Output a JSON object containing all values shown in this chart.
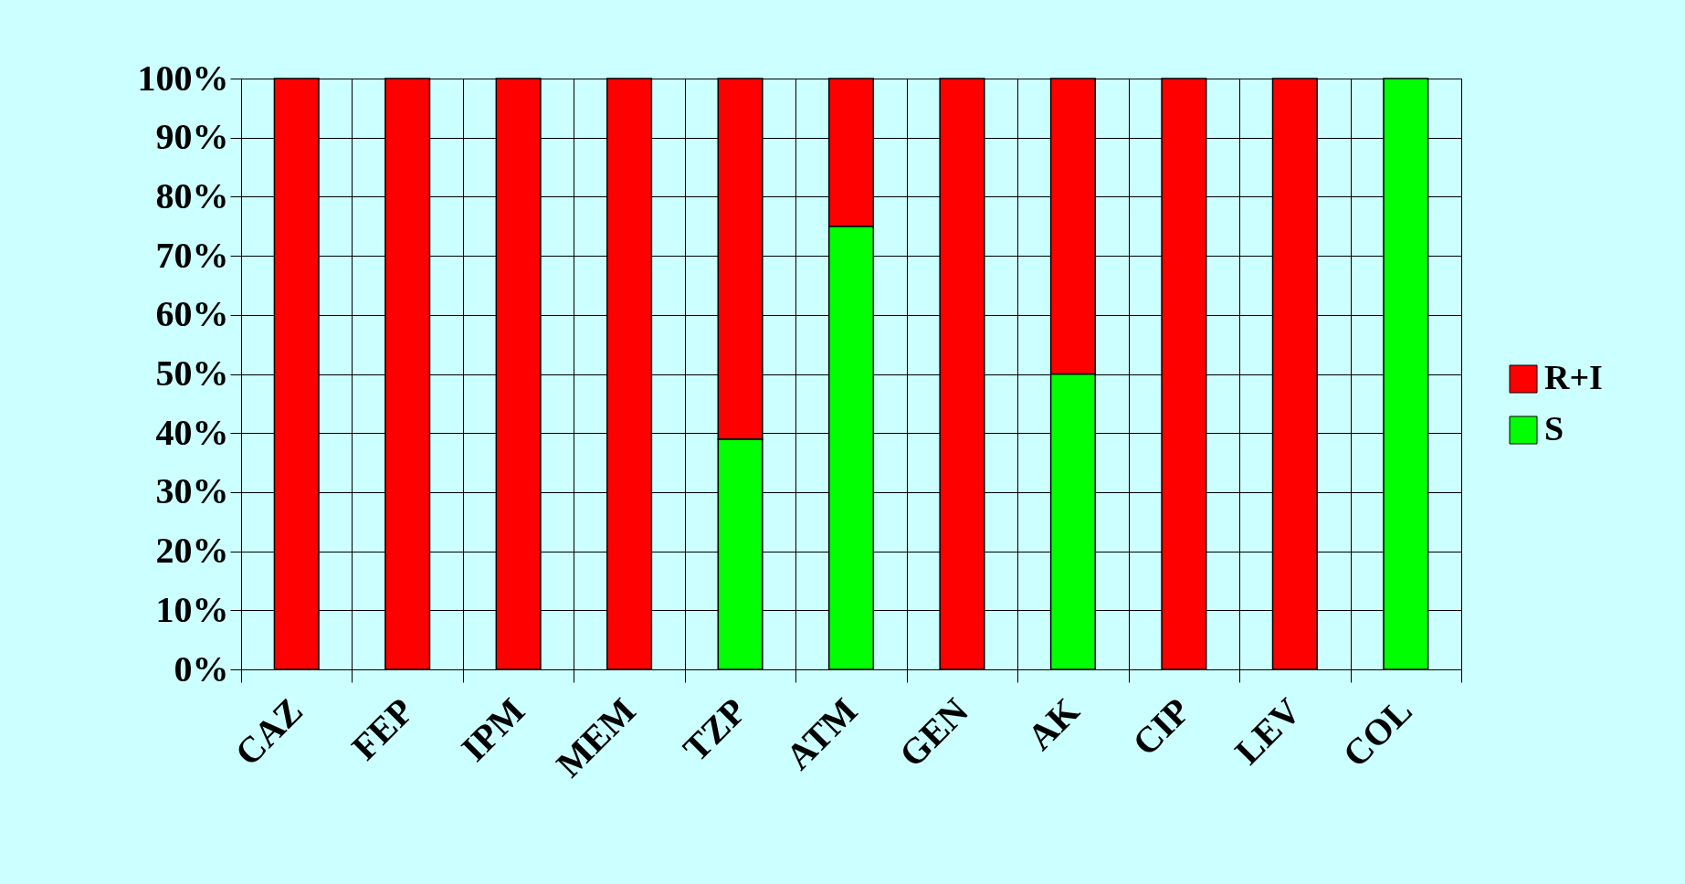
{
  "chart_data": {
    "type": "bar",
    "stacked": true,
    "categories": [
      "CAZ",
      "FEP",
      "IPM",
      "MEM",
      "TZP",
      "ATM",
      "GEN",
      "AK",
      "CIP",
      "LEV",
      "COL"
    ],
    "series": [
      {
        "name": "S",
        "color": "#00ff00",
        "values": [
          null,
          null,
          null,
          null,
          39,
          75,
          null,
          50,
          null,
          null,
          100
        ]
      },
      {
        "name": "R+I",
        "color": "#ff0000",
        "values": [
          100,
          100,
          100,
          100,
          61,
          25,
          100,
          50,
          100,
          100,
          null
        ]
      }
    ],
    "ylim": [
      0,
      100
    ],
    "yticks": [
      {
        "value": 0,
        "label": "0%"
      },
      {
        "value": 10,
        "label": "10%"
      },
      {
        "value": 20,
        "label": "20%"
      },
      {
        "value": 30,
        "label": "30%"
      },
      {
        "value": 40,
        "label": "40%"
      },
      {
        "value": 50,
        "label": "50%"
      },
      {
        "value": 60,
        "label": "60%"
      },
      {
        "value": 70,
        "label": "70%"
      },
      {
        "value": 80,
        "label": "80%"
      },
      {
        "value": 90,
        "label": "90%"
      },
      {
        "value": 100,
        "label": "100%"
      }
    ],
    "grid": true,
    "legend": "right"
  }
}
